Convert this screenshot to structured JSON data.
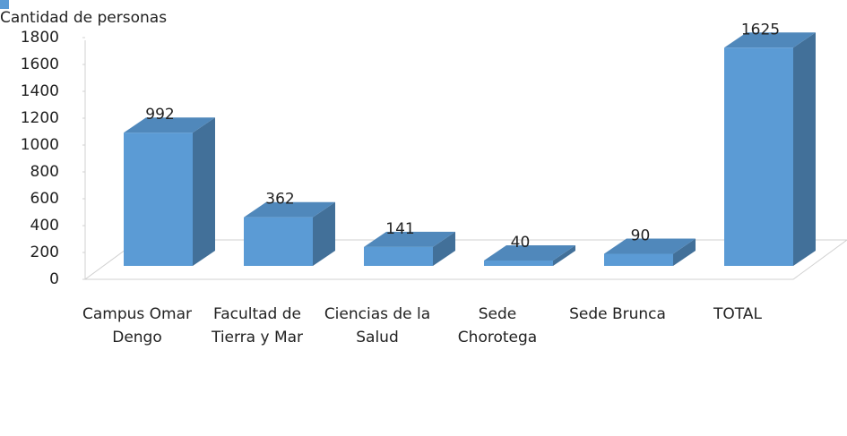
{
  "chart_data": {
    "type": "bar",
    "categories": [
      "Campus Omar Dengo",
      "Facultad de Tierra y Mar",
      "Ciencias de la Salud",
      "Sede Chorotega",
      "Sede Brunca",
      "TOTAL"
    ],
    "series": [
      {
        "name": "Cantidad de personas",
        "color": "#5b9bd5",
        "values": [
          992,
          362,
          141,
          40,
          90,
          1625
        ]
      }
    ],
    "ylim": [
      0,
      1800
    ],
    "yticks": [
      0,
      200,
      400,
      600,
      800,
      1000,
      1200,
      1400,
      1600,
      1800
    ],
    "legend": "bottom"
  }
}
